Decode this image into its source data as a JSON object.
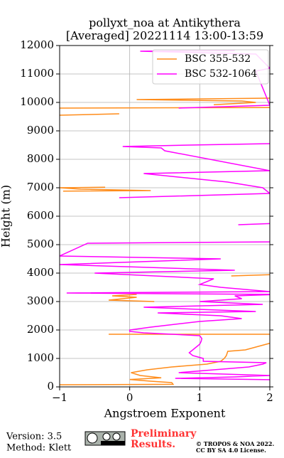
{
  "chart_data": {
    "type": "line",
    "title": "pollyxt_noa at Antikythera",
    "subtitle": "[Averaged] 20221114 13:00-13:59",
    "x_label": "Angstroem Exponent",
    "y_label": "Height (m)",
    "xlim": [
      -1,
      2
    ],
    "xticks": [
      {
        "value": -1,
        "label": "−1"
      },
      0,
      1,
      2
    ],
    "ylim": [
      0,
      12000
    ],
    "yticks": [
      0,
      1000,
      2000,
      3000,
      4000,
      5000,
      6000,
      7000,
      8000,
      9000,
      10000,
      11000,
      12000
    ],
    "grid": true,
    "legend": "upper right",
    "series": [
      {
        "name": "BSC 355-532",
        "color": "#ff8c1a",
        "heights": [
          75,
          90,
          150,
          200,
          260,
          320,
          400,
          500,
          600,
          700,
          800,
          900,
          1000,
          1100,
          1250,
          1300,
          1400,
          1500,
          1600,
          null,
          1850,
          1850,
          null,
          3000,
          3050,
          3150,
          3200,
          3250,
          null,
          3900,
          3950,
          null,
          6880,
          6900,
          6950,
          7000,
          7020,
          null,
          9550,
          9600,
          null,
          9800,
          9820,
          null,
          9920,
          10000,
          10050,
          10100,
          10150
        ],
        "values": [
          -1,
          0.62,
          0.6,
          0.3,
          0.0,
          0.45,
          0.15,
          0.02,
          0.25,
          0.6,
          1.1,
          1.3,
          1.35,
          1.38,
          1.4,
          1.65,
          1.8,
          1.95,
          2.1,
          null,
          -0.3,
          2.1,
          null,
          0.35,
          -0.3,
          0.1,
          -0.25,
          0.1,
          null,
          1.45,
          2.1,
          null,
          -0.95,
          0.3,
          -0.7,
          -1,
          -0.35,
          null,
          -1,
          -0.15,
          null,
          -1,
          2,
          null,
          1.2,
          1.8,
          1.6,
          0.1,
          2
        ]
      },
      {
        "name": "BSC 532-1064",
        "color": "#ff00ff",
        "heights": [
          250,
          300,
          350,
          400,
          500,
          600,
          700,
          800,
          850,
          900,
          1000,
          1100,
          1200,
          1300,
          1400,
          1500,
          1600,
          1700,
          1800,
          1900,
          1950,
          2000,
          2100,
          2300,
          2400,
          2500,
          2600,
          2650,
          2800,
          2900,
          3000,
          3100,
          3200,
          3250,
          3300,
          3350,
          3500,
          3600,
          3800,
          4000,
          4100,
          4300,
          4500,
          4600,
          5050,
          5100,
          null,
          5700,
          5750,
          null,
          6650,
          6800,
          7000,
          7200,
          7500,
          7600,
          8300,
          8400,
          8450,
          8500,
          8550,
          null,
          9800,
          9900,
          11100,
          11200,
          11700,
          11800,
          11820
        ],
        "values": [
          2.1,
          0.65,
          1.5,
          2.0,
          0.7,
          1.2,
          1.7,
          1.9,
          1.95,
          1.05,
          1.05,
          0.9,
          0.85,
          0.9,
          0.95,
          1.0,
          1.02,
          1.03,
          1.0,
          0.2,
          0.0,
          0.0,
          0.3,
          1.0,
          1.6,
          1.3,
          0.4,
          1.8,
          0.2,
          1.9,
          1.0,
          1.6,
          1.5,
          2.1,
          -0.9,
          2.0,
          1.3,
          1.0,
          1.2,
          -0.5,
          1.5,
          -1,
          1.3,
          -1,
          -0.6,
          2.1,
          null,
          1.55,
          2.1,
          null,
          -0.15,
          2,
          1.9,
          1.4,
          0.2,
          2,
          0.5,
          0.45,
          -0.1,
          0.85,
          2,
          null,
          0.7,
          2,
          1.8,
          2,
          1.8,
          0.15,
          1.5
        ]
      }
    ]
  },
  "footer": {
    "version": "Version: 3.5",
    "method": "Method: Klett",
    "preliminary": "Preliminary",
    "results": "Results.",
    "copyright": "© TROPOS & NOA 2022.",
    "license": "CC BY SA 4.0 License."
  }
}
